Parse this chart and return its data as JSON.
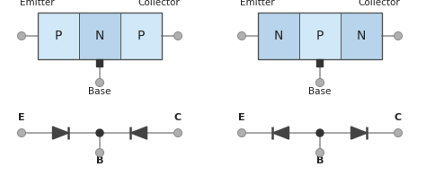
{
  "bg_color": "#ffffff",
  "pnp": {
    "title_left": "Emitter",
    "title_right": "Collector",
    "sections": [
      "P",
      "N",
      "P"
    ],
    "section_colors_p": "#d0e8f8",
    "section_colors_n": "#b8d4ec",
    "base_label": "Base",
    "E_label": "E",
    "C_label": "C",
    "is_pnp": true
  },
  "npn": {
    "title_left": "Emitter",
    "title_right": "Collector",
    "sections": [
      "N",
      "P",
      "N"
    ],
    "section_colors_p": "#d0e8f8",
    "section_colors_n": "#b8d4ec",
    "base_label": "Base",
    "E_label": "E",
    "C_label": "C",
    "is_pnp": false
  },
  "gray_circle_color": "#b0b0b0",
  "dark_color": "#333333",
  "text_color": "#222222",
  "line_color": "#999999",
  "box_border": "#555555",
  "diode_color": "#444444",
  "label_fontsize": 7.5,
  "section_fontsize": 10,
  "base_fontsize": 7.5,
  "ec_fontsize": 8
}
